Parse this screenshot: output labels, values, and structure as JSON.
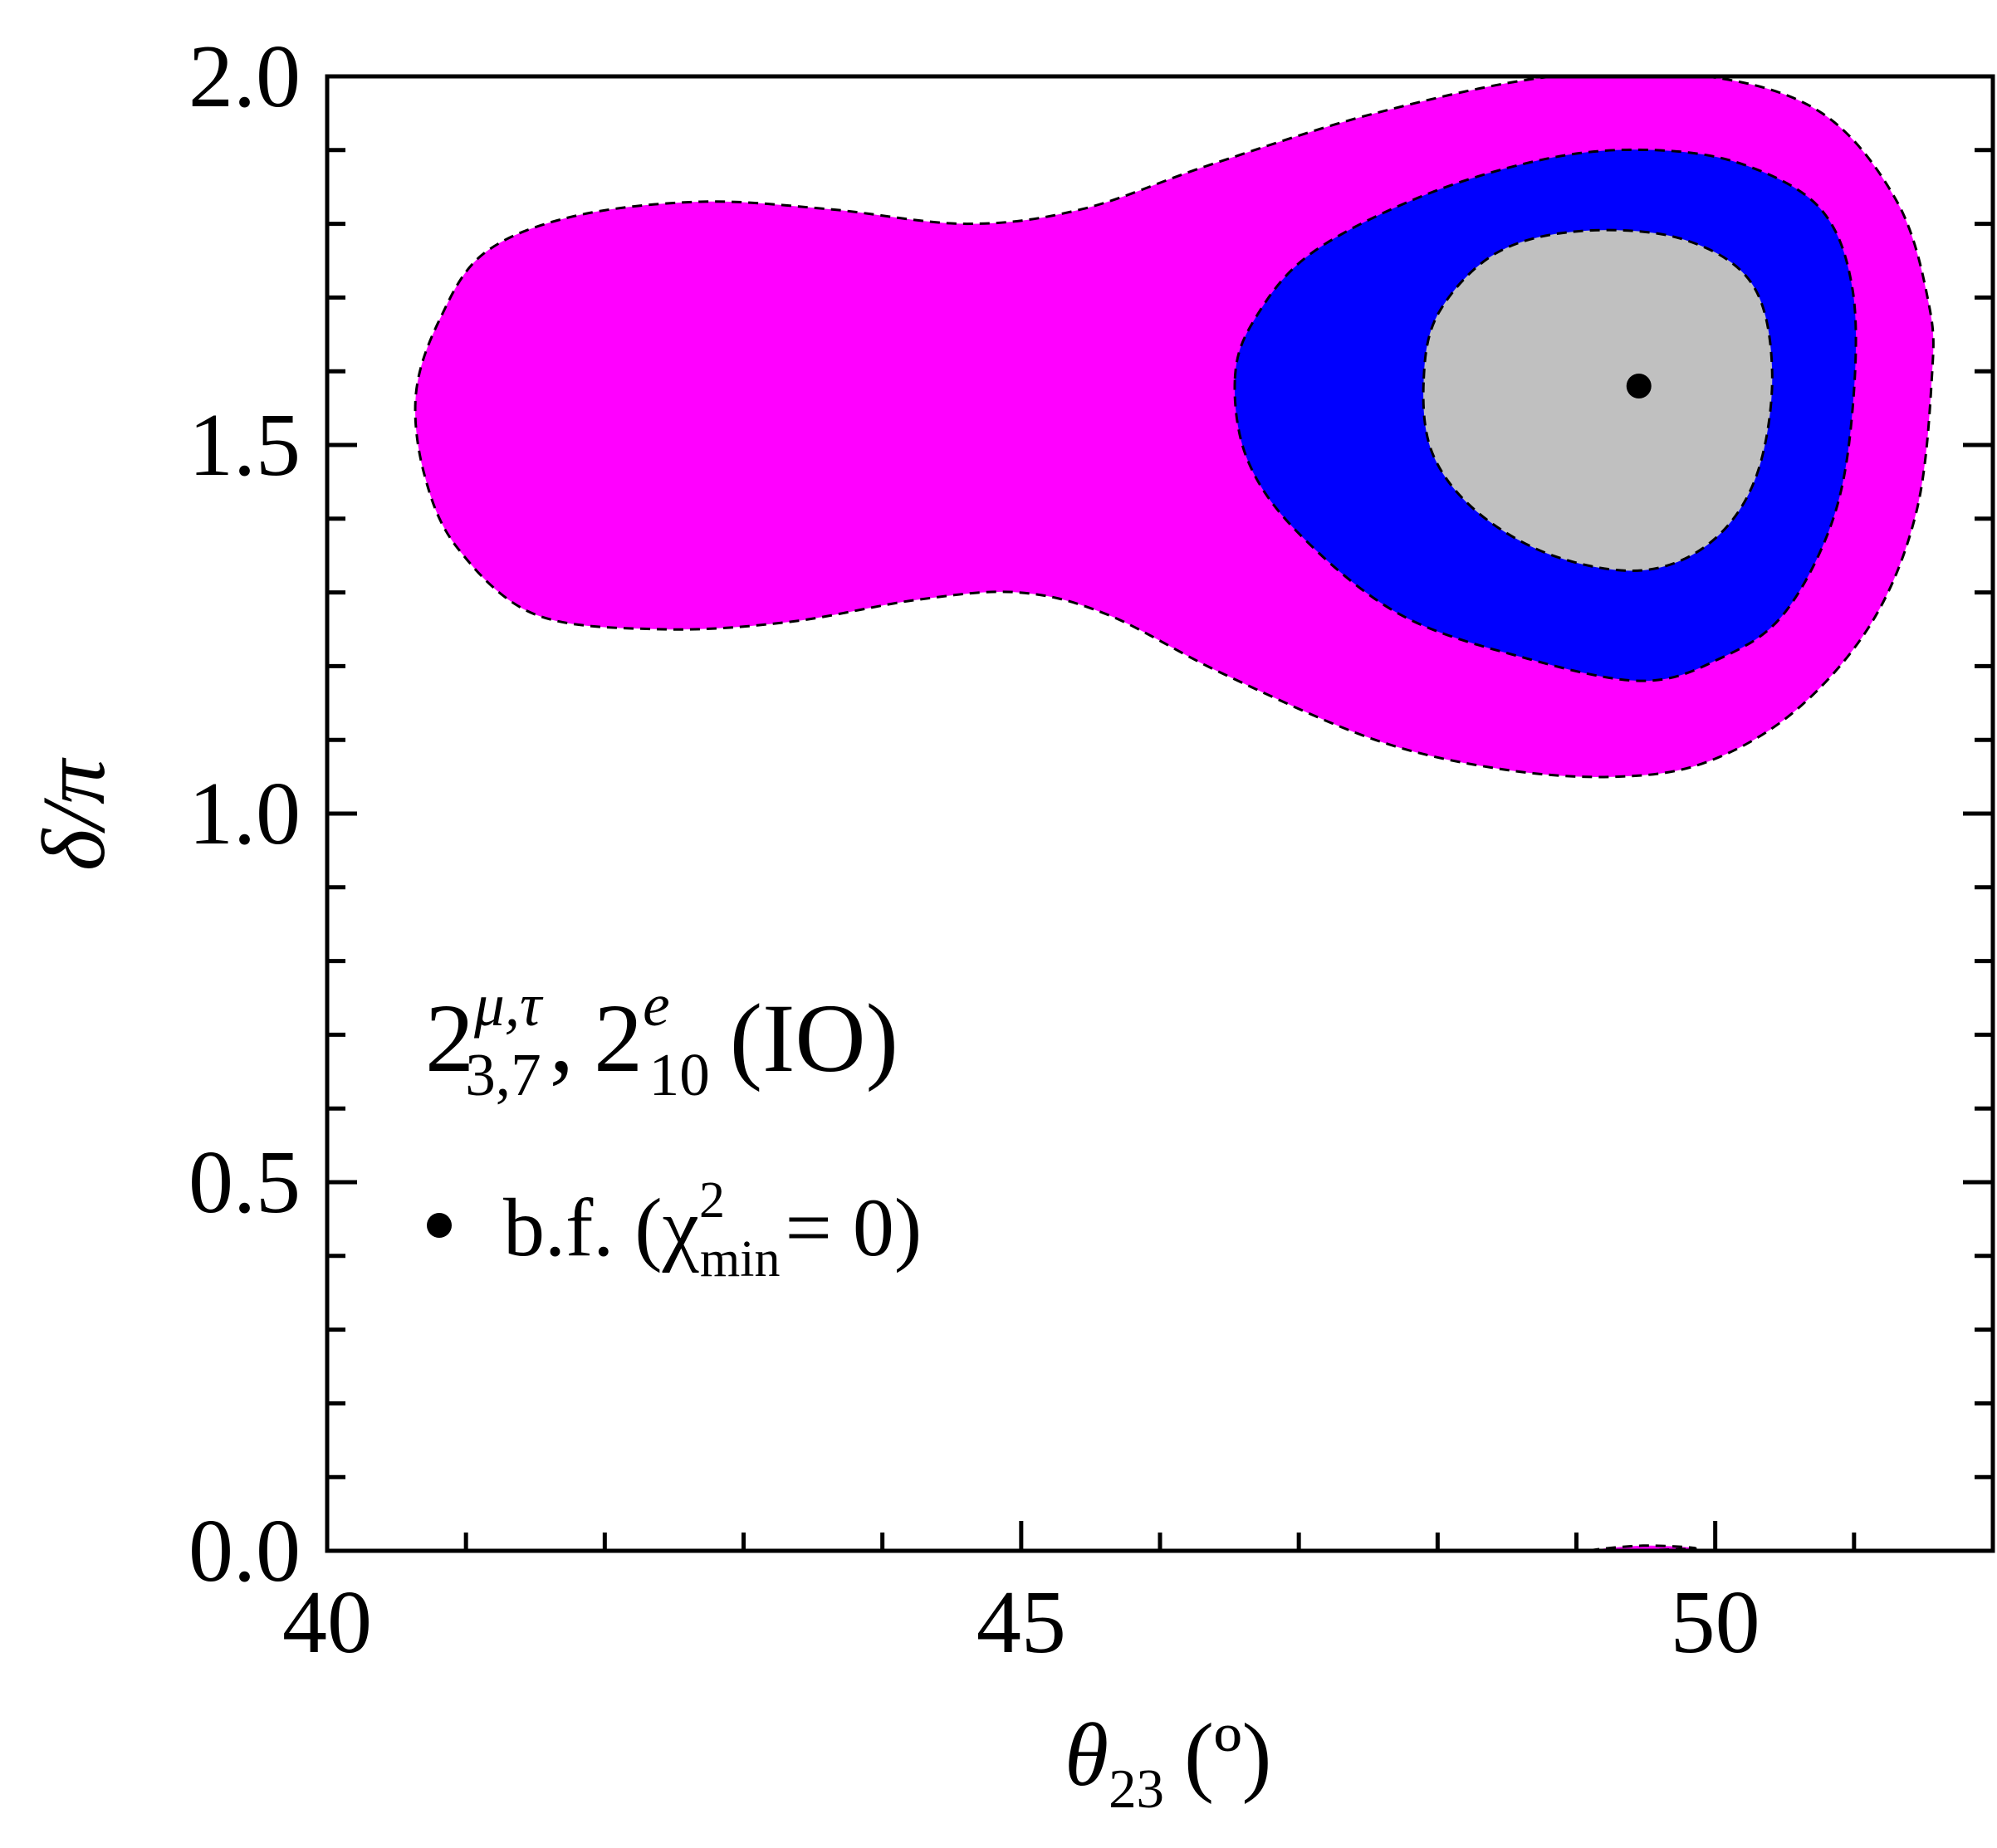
{
  "chart_data": {
    "type": "contour",
    "xlabel": {
      "symbol": "θ",
      "sub": "23",
      "unit": "(º)"
    },
    "ylabel": "δ/π",
    "xlim": [
      40,
      52
    ],
    "ylim": [
      0,
      2
    ],
    "xticks": [
      40,
      45,
      50
    ],
    "yticks": [
      {
        "value": 0,
        "label": "0.0"
      },
      {
        "value": 0.5,
        "label": "0.5"
      },
      {
        "value": 1,
        "label": "1.0"
      },
      {
        "value": 1.5,
        "label": "1.5"
      },
      {
        "value": 2,
        "label": "2.0"
      }
    ],
    "xminorticks": [
      41,
      42,
      43,
      44,
      46,
      47,
      48,
      49,
      51
    ],
    "yminorticks": [
      0.1,
      0.2,
      0.3,
      0.4,
      0.6,
      0.7,
      0.8,
      0.9,
      1.1,
      1.2,
      1.3,
      1.4,
      1.6,
      1.7,
      1.8,
      1.9
    ],
    "series": [
      {
        "color": "#ff00ff",
        "x": [
          40.64,
          40.81,
          41.13,
          41.77,
          42.69,
          43.61,
          44.61,
          45.44,
          46.36,
          47.55,
          48.83,
          49.94,
          50.77,
          51.31,
          51.54,
          51.56,
          51.45,
          51.13,
          50.58,
          49.94,
          49.29,
          48.47,
          47.55,
          46.45,
          45.62,
          44.98,
          44.25,
          43.33,
          42.41,
          41.5,
          40.94,
          40.7
        ],
        "y": [
          1.57,
          1.67,
          1.76,
          1.81,
          1.83,
          1.82,
          1.8,
          1.82,
          1.88,
          1.95,
          2.0,
          2.0,
          1.95,
          1.83,
          1.69,
          1.59,
          1.41,
          1.26,
          1.14,
          1.07,
          1.05,
          1.06,
          1.1,
          1.19,
          1.27,
          1.3,
          1.29,
          1.26,
          1.25,
          1.27,
          1.36,
          1.46
        ]
      },
      {
        "color": "#ff00ff",
        "x": [
          49.11,
          49.48,
          49.85
        ],
        "y": [
          0,
          0.007,
          0.003
        ]
      },
      {
        "color": "#0000ff",
        "x": [
          46.54,
          46.68,
          47.09,
          47.92,
          48.83,
          49.57,
          50.21,
          50.76,
          50.99,
          50.99,
          50.85,
          50.49,
          50.03,
          49.48,
          48.65,
          47.73,
          47.0,
          46.63
        ],
        "y": [
          1.59,
          1.67,
          1.76,
          1.84,
          1.89,
          1.9,
          1.88,
          1.82,
          1.71,
          1.55,
          1.4,
          1.27,
          1.21,
          1.18,
          1.21,
          1.27,
          1.38,
          1.48
        ]
      },
      {
        "color": "#c0c0c0",
        "x": [
          47.9,
          48.01,
          48.42,
          49.02,
          49.75,
          50.26,
          50.41,
          50.3,
          49.98,
          49.48,
          48.83,
          48.28,
          47.96
        ],
        "y": [
          1.59,
          1.68,
          1.76,
          1.79,
          1.78,
          1.72,
          1.6,
          1.46,
          1.37,
          1.33,
          1.35,
          1.41,
          1.49
        ]
      }
    ],
    "best_fit": {
      "x": 49.45,
      "y": 1.58,
      "color": "#000000"
    },
    "annotation": {
      "base1": "2",
      "sup1": "μ,τ",
      "sub1": "3,7",
      "sep": ",",
      "base2": "2",
      "sup2": "e",
      "sub2": "10",
      "tail": "(IO)"
    },
    "legend": {
      "text": "b.f. (χ",
      "sup": "2",
      "sub": "min",
      "tail": "= 0)"
    }
  }
}
